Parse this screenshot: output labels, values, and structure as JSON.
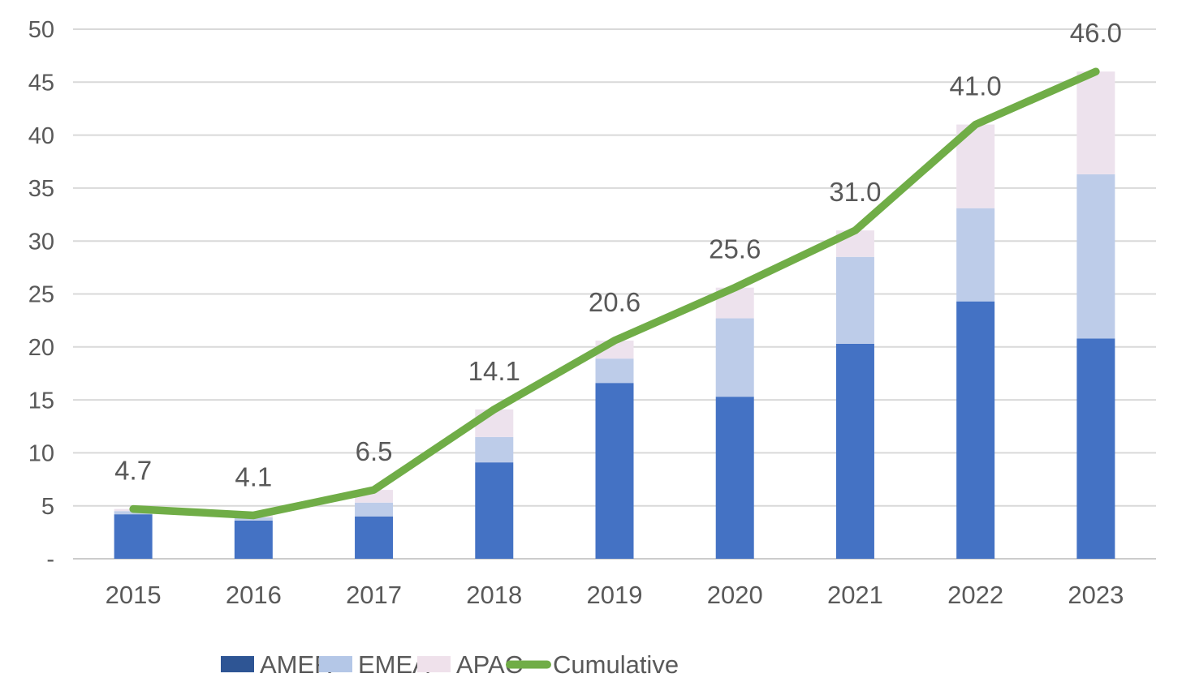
{
  "chart_data": {
    "type": "bar",
    "subtype": "stacked-column-with-cumulative-line",
    "title": "",
    "categories": [
      "2015",
      "2016",
      "2017",
      "2018",
      "2019",
      "2020",
      "2021",
      "2022",
      "2023"
    ],
    "series": [
      {
        "name": "AMER",
        "type": "bar",
        "color": "#4472C4",
        "legend_color": "#2E5594",
        "values": [
          4.2,
          3.6,
          4.0,
          9.1,
          16.6,
          15.3,
          20.3,
          24.3,
          20.8
        ]
      },
      {
        "name": "EMEA",
        "type": "bar",
        "color": "#BDCCE9",
        "legend_color": "#B4C7E7",
        "values": [
          0.3,
          0.3,
          1.3,
          2.4,
          2.3,
          7.4,
          8.2,
          8.8,
          15.5
        ]
      },
      {
        "name": "APAC",
        "type": "bar",
        "color": "#EDE2ED",
        "legend_color": "#EFE1EB",
        "values": [
          0.2,
          0.2,
          1.2,
          2.6,
          1.7,
          2.9,
          2.5,
          7.9,
          9.7
        ]
      },
      {
        "name": "Cumulative",
        "type": "line",
        "color": "#70AD47",
        "values": [
          4.7,
          4.1,
          6.5,
          14.1,
          20.6,
          25.6,
          31.0,
          41.0,
          46.0
        ]
      }
    ],
    "data_labels": [
      "4.7",
      "4.1",
      "6.5",
      "14.1",
      "20.6",
      "25.6",
      "31.0",
      "41.0",
      "46.0"
    ],
    "ylim": [
      0,
      50
    ],
    "y_tick_step": 5,
    "y_tick_labels": [
      "-",
      "5",
      "10",
      "15",
      "20",
      "25",
      "30",
      "35",
      "40",
      "45",
      "50"
    ],
    "xlabel": "",
    "ylabel": "",
    "grid": true,
    "legend_position": "bottom",
    "text_color": "#595959",
    "gridline_color": "#D9D9D9",
    "baseline_color": "#CCCCCC",
    "background_color": "#FFFFFF"
  }
}
